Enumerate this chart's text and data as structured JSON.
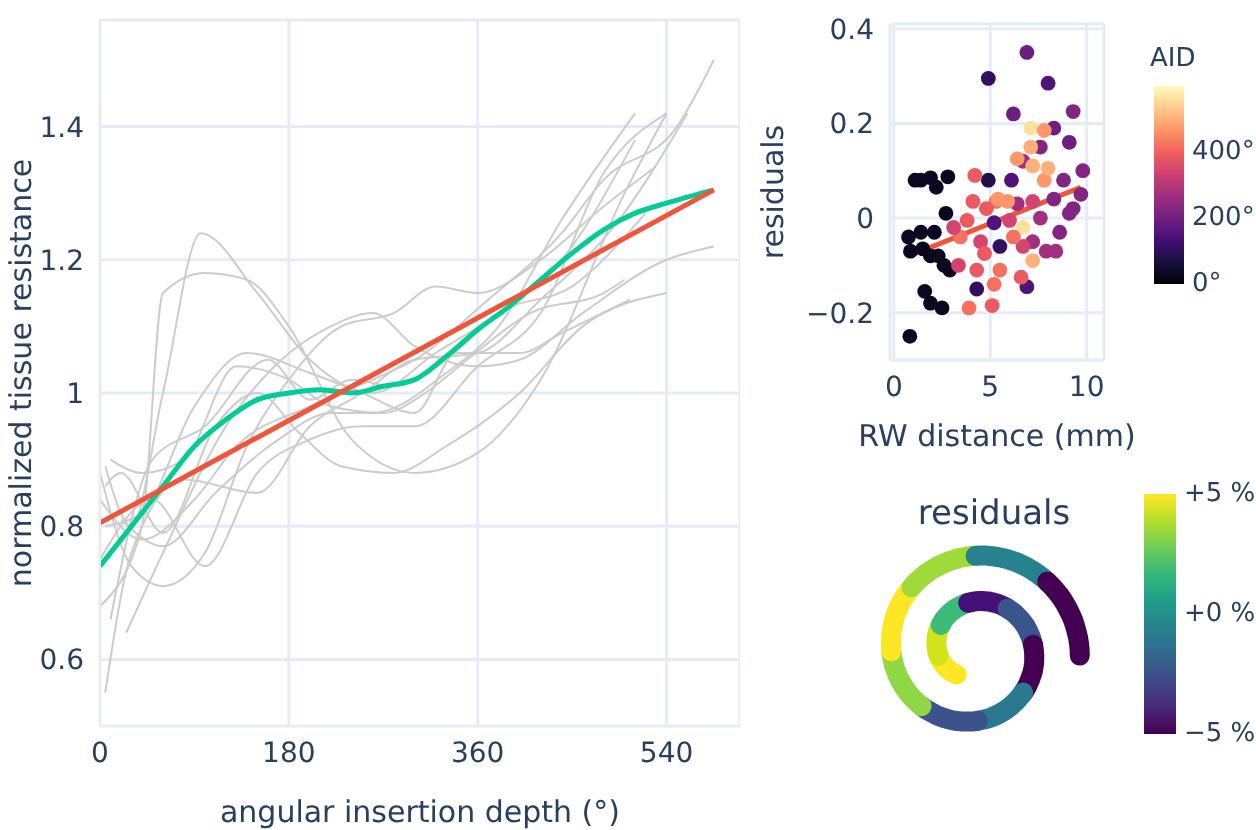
{
  "chart_data": [
    {
      "type": "line",
      "xlabel": "angular insertion depth (°)",
      "ylabel": "normalized tissue resistance",
      "xlim": [
        0,
        610
      ],
      "ylim": [
        0.5,
        1.56
      ],
      "xticks": [
        0,
        180,
        360,
        540
      ],
      "yticks": [
        0.6,
        0.8,
        1,
        1.2,
        1.4
      ],
      "grid": true,
      "series": [
        {
          "color": "#cccccc",
          "x": [
            5,
            30,
            60,
            96,
            150,
            200,
            260,
            320,
            380,
            440,
            510
          ],
          "values": [
            0.89,
            0.8,
            1.0,
            1.24,
            1.15,
            1.05,
            1.0,
            1.06,
            1.12,
            1.2,
            1.38
          ]
        },
        {
          "color": "#cccccc",
          "x": [
            0,
            40,
            60,
            100,
            140,
            180,
            240,
            300,
            360,
            420,
            500,
            540
          ],
          "values": [
            0.68,
            0.8,
            1.15,
            1.18,
            1.17,
            1.1,
            0.93,
            0.88,
            0.91,
            1.02,
            1.3,
            1.42
          ]
        },
        {
          "color": "#cccccc",
          "x": [
            5,
            30,
            80,
            150,
            200,
            250,
            300,
            360,
            420,
            490,
            560
          ],
          "values": [
            0.55,
            0.76,
            0.87,
            0.85,
            0.95,
            1.0,
            1.05,
            1.06,
            1.14,
            1.25,
            1.42
          ]
        },
        {
          "color": "#cccccc",
          "x": [
            0,
            30,
            60,
            100,
            140,
            180,
            230,
            280,
            320,
            360,
            420,
            480,
            530
          ],
          "values": [
            0.88,
            0.74,
            0.71,
            0.76,
            0.92,
            1.02,
            1.1,
            1.12,
            1.16,
            1.15,
            1.2,
            1.28,
            1.34
          ]
        },
        {
          "color": "#cccccc",
          "x": [
            25,
            60,
            120,
            160,
            220,
            260,
            300,
            360,
            400,
            460,
            540,
            585
          ],
          "values": [
            0.64,
            0.76,
            0.95,
            1.03,
            1.1,
            1.12,
            1.07,
            1.04,
            1.05,
            1.12,
            1.2,
            1.22
          ]
        },
        {
          "color": "#cccccc",
          "x": [
            10,
            40,
            80,
            130,
            180,
            220,
            270,
            310,
            350,
            410,
            480,
            500
          ],
          "values": [
            0.9,
            0.88,
            0.9,
            1.04,
            1.02,
            0.98,
            0.97,
            1.0,
            1.05,
            1.12,
            1.15,
            1.17
          ]
        },
        {
          "color": "#cccccc",
          "x": [
            5,
            40,
            90,
            140,
            200,
            250,
            300,
            340,
            400,
            440,
            505
          ],
          "values": [
            0.8,
            0.82,
            0.98,
            1.06,
            1.03,
            1.0,
            0.97,
            1.06,
            1.06,
            1.09,
            1.14
          ]
        },
        {
          "color": "#cccccc",
          "x": [
            0,
            50,
            100,
            150,
            200,
            250,
            300,
            360,
            420,
            480,
            540
          ],
          "values": [
            0.75,
            0.84,
            0.74,
            0.88,
            0.93,
            0.95,
            0.95,
            1.04,
            1.12,
            1.33,
            1.42
          ]
        },
        {
          "color": "#cccccc",
          "x": [
            10,
            50,
            100,
            160,
            200,
            240,
            280,
            330,
            380,
            450,
            520
          ],
          "values": [
            0.66,
            0.9,
            0.95,
            1.05,
            0.99,
            1.02,
            1.01,
            1.05,
            1.12,
            1.16,
            1.27
          ]
        },
        {
          "color": "#cccccc",
          "x": [
            20,
            60,
            110,
            170,
            220,
            260,
            330,
            380,
            440,
            510
          ],
          "values": [
            0.81,
            0.77,
            0.85,
            0.93,
            0.97,
            0.97,
            1.03,
            1.1,
            1.26,
            1.42
          ]
        },
        {
          "color": "#cccccc",
          "x": [
            0,
            40,
            90,
            130,
            200,
            260,
            300,
            370,
            440,
            480,
            550,
            585
          ],
          "values": [
            0.84,
            0.78,
            0.84,
            0.92,
            0.98,
            1.02,
            1.05,
            1.14,
            1.24,
            1.32,
            1.4,
            1.5
          ]
        },
        {
          "color": "#cccccc",
          "x": [
            5,
            20,
            60,
            110,
            150,
            190,
            230,
            280,
            330,
            400,
            460,
            540
          ],
          "values": [
            0.86,
            0.88,
            0.79,
            0.95,
            1.0,
            0.94,
            0.89,
            0.88,
            0.92,
            1.0,
            1.1,
            1.15
          ]
        },
        {
          "color": "#00cc96",
          "x": [
            0,
            30,
            60,
            90,
            120,
            150,
            180,
            210,
            240,
            270,
            300,
            330,
            360,
            390,
            420,
            450,
            480,
            510,
            540,
            585
          ],
          "values": [
            0.74,
            0.8,
            0.86,
            0.92,
            0.96,
            0.99,
            1.0,
            1.005,
            1.0,
            1.01,
            1.02,
            1.055,
            1.095,
            1.13,
            1.17,
            1.21,
            1.245,
            1.27,
            1.285,
            1.305
          ]
        },
        {
          "color": "#ef553b",
          "x": [
            0,
            585
          ],
          "values": [
            0.805,
            1.305
          ]
        }
      ]
    },
    {
      "type": "scatter",
      "xlabel": "RW distance (mm)",
      "ylabel": "residuals",
      "clabel": "AID",
      "xlim": [
        -0.2,
        10.9
      ],
      "ylim": [
        -0.3,
        0.41
      ],
      "xticks": [
        0,
        5,
        10
      ],
      "yticks": [
        {
          "value": -0.2,
          "label": "−0.2"
        },
        0,
        0.2,
        0.4
      ],
      "grid": true,
      "clim": [
        0,
        600
      ],
      "cticks": [
        {
          "value": 0,
          "label": "0°"
        },
        {
          "value": 200,
          "label": "200°"
        },
        {
          "value": 400,
          "label": "400°"
        }
      ],
      "series": [
        {
          "type": "scatter",
          "x": [
            0.83,
            1.1,
            1.4,
            1.9,
            2.2,
            2.8,
            0.76,
            1.4,
            0.86,
            1.5,
            1.9,
            2.3,
            2.7,
            2.1,
            1.6,
            1.9,
            2.5,
            2.9,
            2.6,
            4.9,
            4.9,
            4.3,
            6.9,
            8.0,
            6.2,
            9.3,
            9.1,
            8.3,
            9.8,
            8.8,
            8.3,
            9.3,
            7.6,
            8.6,
            7.9,
            6.9,
            6.1,
            6.7,
            7.6,
            5.5,
            5.2,
            8.4,
            9.7,
            9.1,
            7.2,
            6.4,
            4.2,
            3.9,
            5.1,
            5.2,
            4.1,
            3.8,
            4.5,
            3.45,
            5.3,
            4.8,
            6.0,
            5.5,
            4.3,
            4.7,
            6.6,
            3.35,
            3.1,
            7.2,
            6.7,
            7.1,
            7.1,
            7.8,
            6.4,
            7.2,
            6.7,
            7.2,
            5.9,
            5.4,
            7.8,
            6.2,
            8.0
          ],
          "values": [
            -0.25,
            0.08,
            0.08,
            0.085,
            0.065,
            0.087,
            -0.04,
            -0.03,
            -0.07,
            -0.065,
            -0.08,
            -0.08,
            0.01,
            -0.03,
            -0.155,
            -0.18,
            -0.19,
            -0.11,
            -0.1,
            0.08,
            0.295,
            -0.15,
            0.35,
            0.285,
            0.22,
            0.225,
            0.16,
            0.19,
            0.1,
            0.08,
            0.04,
            0.02,
            0.0,
            -0.03,
            -0.07,
            -0.145,
            0.08,
            0.12,
            0.15,
            -0.06,
            -0.01,
            -0.07,
            0.05,
            0.01,
            -0.05,
            0.03,
            0.09,
            -0.19,
            -0.185,
            -0.14,
            0.035,
            -0.005,
            -0.05,
            -0.04,
            0.035,
            0.02,
            -0.005,
            -0.11,
            -0.11,
            -0.075,
            -0.125,
            -0.1,
            -0.02,
            0.035,
            -0.06,
            0.19,
            0.15,
            0.185,
            0.125,
            0.11,
            -0.02,
            -0.09,
            0.035,
            0.04,
            0.08,
            -0.04,
            0.105
          ],
          "colors": [
            "#0b0720",
            "#0b0720",
            "#0b0720",
            "#0b0720",
            "#0b0720",
            "#0b0720",
            "#0b0720",
            "#0b0720",
            "#0b0720",
            "#0b0720",
            "#0b0720",
            "#0b0720",
            "#0b0720",
            "#0b0720",
            "#0b0720",
            "#0b0720",
            "#0b0720",
            "#0b0720",
            "#0b0720",
            "#210f48",
            "#33105f",
            "#33105f",
            "#6e1e80",
            "#4f1379",
            "#6e1e80",
            "#822580",
            "#6e1e80",
            "#6e1e80",
            "#822580",
            "#822580",
            "#822580",
            "#822580",
            "#a02f7f",
            "#822580",
            "#a02f7f",
            "#4f1379",
            "#4f1379",
            "#a02f7f",
            "#822580",
            "#33105f",
            "#4f1379",
            "#a02f7f",
            "#822580",
            "#822580",
            "#a02f7f",
            "#a02f7f",
            "#ea5a60",
            "#f5705f",
            "#ea5a60",
            "#f5705f",
            "#ea5a60",
            "#ea5a60",
            "#d34470",
            "#f5705f",
            "#f5705f",
            "#ea5a60",
            "#d34470",
            "#f5705f",
            "#ea5a60",
            "#ea5a60",
            "#ea5a60",
            "#d34470",
            "#d34470",
            "#d34470",
            "#d34470",
            "#fde09f",
            "#feb07b",
            "#fd9668",
            "#fd9668",
            "#feb07b",
            "#fde09f",
            "#feb07b",
            "#fd9668",
            "#fd9668",
            "#fd9668",
            "#f5705f",
            "#feb07b"
          ]
        },
        {
          "type": "line",
          "color": "#ef553b",
          "x": [
            0.8,
            9.7
          ],
          "values": [
            -0.08,
            0.065
          ]
        }
      ]
    },
    {
      "type": "other",
      "title": "residuals",
      "annotations": [
        "+5 %",
        "+0 %",
        "−5 %"
      ]
    }
  ]
}
